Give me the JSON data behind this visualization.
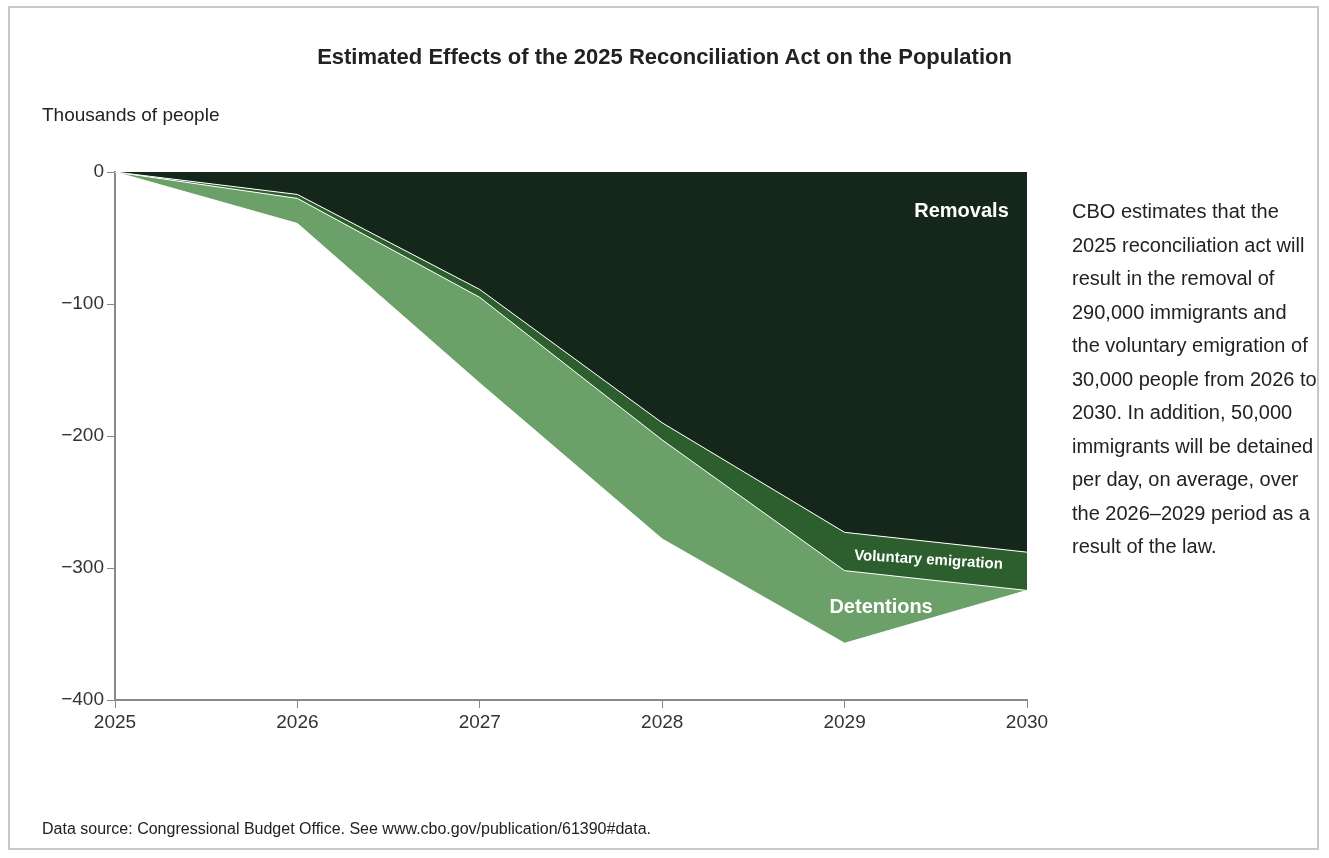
{
  "chart_data": {
    "type": "area",
    "stacked": true,
    "title": "Estimated Effects of the 2025 Reconciliation Act on the Population",
    "ylabel": "Thousands of people",
    "categories": [
      "2025",
      "2026",
      "2027",
      "2028",
      "2029",
      "2030"
    ],
    "series": [
      {
        "name": "Removals",
        "color": "#15261a",
        "values": [
          0,
          -17,
          -89,
          -190,
          -273,
          -288
        ]
      },
      {
        "name": "Voluntary emigration",
        "color": "#2c5e2e",
        "values": [
          0,
          -3,
          -6,
          -13,
          -29,
          -29
        ]
      },
      {
        "name": "Detentions",
        "color": "#6ba068",
        "values": [
          0,
          -19,
          -65,
          -75,
          -55,
          0
        ]
      }
    ],
    "ylim": [
      -400,
      0
    ],
    "yticks": [
      0,
      -100,
      -200,
      -300,
      -400
    ],
    "annotations": [
      "CBO estimates that the 2025 reconciliation act will result in the removal of 290,000 immigrants and the voluntary emigration of 30,000 people from 2026 to 2030. In addition, 50,000 immigrants will be detained per day, on average, over the 2026–2029 period as a result of the law.",
      "Data source: Congressional Budget Office. See www.cbo.gov/publication/61390#data."
    ]
  }
}
